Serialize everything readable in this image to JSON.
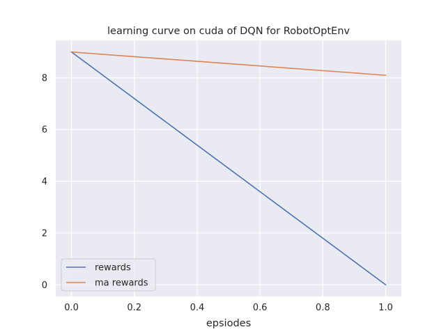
{
  "chart_data": {
    "type": "line",
    "title": "learning curve on cuda of DQN for RobotOptEnv",
    "xlabel": "epsiodes",
    "ylabel": "",
    "xlim": [
      -0.05,
      1.05
    ],
    "ylim": [
      -0.45,
      9.45
    ],
    "xticks": [
      0.0,
      0.2,
      0.4,
      0.6,
      0.8,
      1.0
    ],
    "xtick_labels": [
      "0.0",
      "0.2",
      "0.4",
      "0.6",
      "0.8",
      "1.0"
    ],
    "yticks": [
      0,
      2,
      4,
      6,
      8
    ],
    "ytick_labels": [
      "0",
      "2",
      "4",
      "6",
      "8"
    ],
    "grid": true,
    "legend_position": "lower-left",
    "series": [
      {
        "name": "rewards",
        "color": "#4c72b0",
        "x": [
          0,
          1
        ],
        "y": [
          9,
          0
        ]
      },
      {
        "name": "ma rewards",
        "color": "#dd8452",
        "x": [
          0,
          1
        ],
        "y": [
          9,
          8.1
        ]
      }
    ]
  },
  "colors": {
    "plot_background": "#eaeaf2",
    "grid": "#ffffff",
    "text": "#262626"
  }
}
